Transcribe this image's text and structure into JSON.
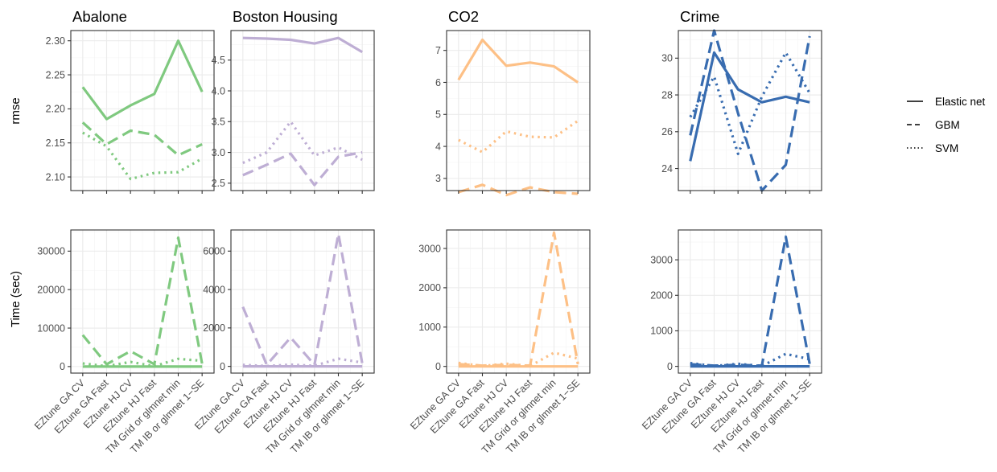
{
  "chart_data": {
    "type": "line",
    "facet_layout": "grid: metrics as rows, datasets as columns",
    "x_categories": [
      "EZtune GA CV",
      "EZtune GA Fast",
      "EZtune HJ CV",
      "EZtune HJ Fast",
      "TM Grid or glmnet min",
      "TM IB or glmnet 1−SE"
    ],
    "metrics": [
      {
        "key": "rmse",
        "label": "rmse"
      },
      {
        "key": "time",
        "label": "Time (sec)"
      }
    ],
    "legend": {
      "position": "right",
      "items": [
        {
          "name": "Elastic net",
          "dash": "solid"
        },
        {
          "name": "GBM",
          "dash": "dashed"
        },
        {
          "name": "SVM",
          "dash": "dotted"
        }
      ]
    },
    "grid": true,
    "datasets": [
      {
        "name": "Abalone",
        "color": "#7fc97f",
        "rmse": {
          "ylim": [
            2.08,
            2.315
          ],
          "yticks": [
            2.1,
            2.15,
            2.2,
            2.25,
            2.3
          ],
          "tick_labels": [
            "2.10",
            "2.15",
            "2.20",
            "2.25",
            "2.30"
          ],
          "series": [
            {
              "name": "Elastic net",
              "values": [
                2.232,
                2.185,
                2.205,
                2.222,
                2.3,
                2.225
              ]
            },
            {
              "name": "GBM",
              "values": [
                2.18,
                2.148,
                2.168,
                2.162,
                2.132,
                2.148
              ]
            },
            {
              "name": "SVM",
              "values": [
                2.165,
                2.145,
                2.097,
                2.106,
                2.107,
                2.127
              ]
            }
          ]
        },
        "time": {
          "ylim": [
            -1700,
            35500
          ],
          "yticks": [
            0,
            10000,
            20000,
            30000
          ],
          "tick_labels": [
            "0",
            "10000",
            "20000",
            "30000"
          ],
          "series": [
            {
              "name": "Elastic net",
              "values": [
                0,
                0,
                0,
                0,
                0,
                0
              ]
            },
            {
              "name": "GBM",
              "values": [
                8200,
                600,
                4000,
                600,
                33500,
                700
              ]
            },
            {
              "name": "SVM",
              "values": [
                800,
                100,
                1200,
                100,
                2000,
                1500
              ]
            }
          ]
        }
      },
      {
        "name": "Boston Housing",
        "color": "#beaed4",
        "rmse": {
          "ylim": [
            2.38,
            4.98
          ],
          "yticks": [
            2.5,
            3.0,
            3.5,
            4.0,
            4.5
          ],
          "tick_labels": [
            "2.5",
            "3.0",
            "3.5",
            "4.0",
            "4.5"
          ],
          "series": [
            {
              "name": "Elastic net",
              "values": [
                4.86,
                4.85,
                4.83,
                4.77,
                4.86,
                4.63
              ]
            },
            {
              "name": "GBM",
              "values": [
                2.63,
                2.8,
                2.98,
                2.47,
                2.93,
                3.0
              ]
            },
            {
              "name": "SVM",
              "values": [
                2.83,
                3.0,
                3.5,
                2.95,
                3.08,
                2.88
              ]
            }
          ]
        },
        "time": {
          "ylim": [
            -350,
            7100
          ],
          "yticks": [
            0,
            2000,
            4000,
            6000
          ],
          "tick_labels": [
            "0",
            "2000",
            "4000",
            "6000"
          ],
          "series": [
            {
              "name": "Elastic net",
              "values": [
                0,
                0,
                0,
                0,
                0,
                0
              ]
            },
            {
              "name": "GBM",
              "values": [
                3100,
                80,
                1500,
                80,
                6900,
                150
              ]
            },
            {
              "name": "SVM",
              "values": [
                80,
                20,
                90,
                30,
                400,
                200
              ]
            }
          ]
        }
      },
      {
        "name": "CO2",
        "color": "#fdc086",
        "rmse": {
          "ylim": [
            2.62,
            7.62
          ],
          "yticks": [
            3,
            4,
            5,
            6,
            7
          ],
          "tick_labels": [
            "3",
            "4",
            "5",
            "6",
            "7"
          ],
          "series": [
            {
              "name": "Elastic net",
              "values": [
                6.08,
                7.33,
                6.52,
                6.62,
                6.5,
                6.0
              ]
            },
            {
              "name": "GBM",
              "values": [
                2.57,
                2.8,
                2.48,
                2.72,
                2.57,
                2.52
              ]
            },
            {
              "name": "SVM",
              "values": [
                4.2,
                3.82,
                4.47,
                4.3,
                4.28,
                4.8
              ]
            }
          ]
        },
        "time": {
          "ylim": [
            -170,
            3470
          ],
          "yticks": [
            0,
            1000,
            2000,
            3000
          ],
          "tick_labels": [
            "0",
            "1000",
            "2000",
            "3000"
          ],
          "series": [
            {
              "name": "Elastic net",
              "values": [
                0,
                0,
                0,
                0,
                0,
                0
              ]
            },
            {
              "name": "GBM",
              "values": [
                60,
                20,
                40,
                20,
                3400,
                60
              ]
            },
            {
              "name": "SVM",
              "values": [
                90,
                10,
                70,
                10,
                350,
                200
              ]
            }
          ]
        }
      },
      {
        "name": "Crime",
        "color": "#386cb0",
        "rmse": {
          "ylim": [
            22.8,
            31.5
          ],
          "yticks": [
            24,
            26,
            28,
            30
          ],
          "tick_labels": [
            "24",
            "26",
            "28",
            "30"
          ],
          "series": [
            {
              "name": "Elastic net",
              "values": [
                24.4,
                30.3,
                28.3,
                27.6,
                27.9,
                27.6
              ]
            },
            {
              "name": "GBM",
              "values": [
                25.8,
                31.5,
                27.0,
                22.8,
                24.2,
                31.2
              ]
            },
            {
              "name": "SVM",
              "values": [
                26.8,
                29.0,
                24.8,
                27.9,
                30.3,
                28.1
              ]
            }
          ]
        },
        "time": {
          "ylim": [
            -190,
            3840
          ],
          "yticks": [
            0,
            1000,
            2000,
            3000
          ],
          "tick_labels": [
            "0",
            "1000",
            "2000",
            "3000"
          ],
          "series": [
            {
              "name": "Elastic net",
              "values": [
                0,
                0,
                0,
                0,
                0,
                0
              ]
            },
            {
              "name": "GBM",
              "values": [
                60,
                20,
                40,
                20,
                3650,
                70
              ]
            },
            {
              "name": "SVM",
              "values": [
                90,
                10,
                70,
                10,
                350,
                200
              ]
            }
          ]
        }
      }
    ]
  }
}
